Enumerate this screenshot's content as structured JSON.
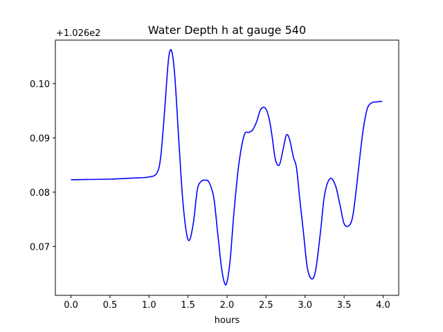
{
  "chart_data": {
    "type": "line",
    "title": "Water Depth h at gauge 540",
    "xlabel": "hours",
    "ylabel": "",
    "y_offset_label": "+1.026e2",
    "xlim": [
      -0.2,
      4.2
    ],
    "ylim": [
      0.061,
      0.108
    ],
    "xticks": [
      0.0,
      0.5,
      1.0,
      1.5,
      2.0,
      2.5,
      3.0,
      3.5,
      4.0
    ],
    "xtick_labels": [
      "0.0",
      "0.5",
      "1.0",
      "1.5",
      "2.0",
      "2.5",
      "3.0",
      "3.5",
      "4.0"
    ],
    "yticks": [
      0.07,
      0.08,
      0.09,
      0.1
    ],
    "ytick_labels": [
      "0.07",
      "0.08",
      "0.09",
      "0.10"
    ],
    "grid": false,
    "series": [
      {
        "color": "#0000ff",
        "x": [
          0.0,
          0.5,
          0.8,
          1.0,
          1.1,
          1.15,
          1.2,
          1.25,
          1.29,
          1.33,
          1.38,
          1.43,
          1.48,
          1.52,
          1.57,
          1.62,
          1.67,
          1.72,
          1.77,
          1.83,
          1.88,
          1.93,
          1.97,
          2.0,
          2.04,
          2.09,
          2.15,
          2.22,
          2.28,
          2.33,
          2.38,
          2.43,
          2.49,
          2.54,
          2.58,
          2.62,
          2.67,
          2.72,
          2.76,
          2.8,
          2.85,
          2.89,
          2.93,
          2.98,
          3.03,
          3.09,
          3.14,
          3.2,
          3.25,
          3.32,
          3.39,
          3.45,
          3.5,
          3.56,
          3.61,
          3.66,
          3.71,
          3.75,
          3.8,
          3.86,
          3.91,
          3.95,
          3.99
        ],
        "y": [
          0.0823,
          0.0824,
          0.0826,
          0.0828,
          0.0835,
          0.0865,
          0.095,
          0.1045,
          0.106,
          0.1015,
          0.09,
          0.079,
          0.0725,
          0.0712,
          0.0745,
          0.0805,
          0.082,
          0.0822,
          0.0818,
          0.079,
          0.0725,
          0.066,
          0.0632,
          0.0635,
          0.0675,
          0.0765,
          0.085,
          0.0905,
          0.091,
          0.0915,
          0.093,
          0.0952,
          0.0955,
          0.0935,
          0.09,
          0.086,
          0.085,
          0.088,
          0.0905,
          0.0898,
          0.0865,
          0.0845,
          0.079,
          0.0725,
          0.066,
          0.064,
          0.066,
          0.073,
          0.0795,
          0.0825,
          0.0812,
          0.0775,
          0.0742,
          0.0738,
          0.0755,
          0.081,
          0.0875,
          0.092,
          0.0955,
          0.0965,
          0.0966,
          0.0967,
          0.0967
        ]
      }
    ]
  }
}
